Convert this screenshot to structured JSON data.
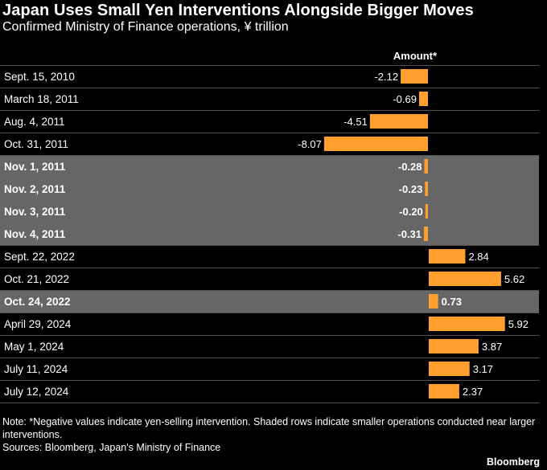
{
  "chart_data": {
    "type": "bar",
    "title": "Japan Uses Small Yen Interventions Alongside Bigger Moves",
    "subtitle": "Confirmed Ministry of Finance operations, ¥ trillion",
    "column_header": "Amount*",
    "rows": [
      {
        "date": "Sept. 15, 2010",
        "value": -2.12,
        "label": "-2.12",
        "shaded": false
      },
      {
        "date": "March 18, 2011",
        "value": -0.69,
        "label": "-0.69",
        "shaded": false
      },
      {
        "date": "Aug. 4, 2011",
        "value": -4.51,
        "label": "-4.51",
        "shaded": false
      },
      {
        "date": "Oct. 31, 2011",
        "value": -8.07,
        "label": "-8.07",
        "shaded": false
      },
      {
        "date": "Nov. 1, 2011",
        "value": -0.28,
        "label": "-0.28",
        "shaded": true
      },
      {
        "date": "Nov. 2, 2011",
        "value": -0.23,
        "label": "-0.23",
        "shaded": true
      },
      {
        "date": "Nov. 3, 2011",
        "value": -0.2,
        "label": "-0.20",
        "shaded": true
      },
      {
        "date": "Nov. 4, 2011",
        "value": -0.31,
        "label": "-0.31",
        "shaded": true
      },
      {
        "date": "Sept. 22, 2022",
        "value": 2.84,
        "label": "2.84",
        "shaded": false
      },
      {
        "date": "Oct. 21, 2022",
        "value": 5.62,
        "label": "5.62",
        "shaded": false
      },
      {
        "date": "Oct. 24, 2022",
        "value": 0.73,
        "label": "0.73",
        "shaded": true
      },
      {
        "date": "April 29, 2024",
        "value": 5.92,
        "label": "5.92",
        "shaded": false
      },
      {
        "date": "May 1, 2024",
        "value": 3.87,
        "label": "3.87",
        "shaded": false
      },
      {
        "date": "July 11, 2024",
        "value": 3.17,
        "label": "3.17",
        "shaded": false
      },
      {
        "date": "July 12, 2024",
        "value": 2.37,
        "label": "2.37",
        "shaded": false
      }
    ],
    "colors": {
      "bar": "#ff9f2e",
      "shade": "#666666",
      "divider": "#555555",
      "background": "#000000"
    }
  },
  "footer": {
    "note": "Note: *Negative values indicate yen-selling intervention. Shaded rows indicate smaller operations conducted near larger interventions.",
    "sources": "Sources: Bloomberg, Japan's Ministry of Finance",
    "brand": "Bloomberg"
  }
}
